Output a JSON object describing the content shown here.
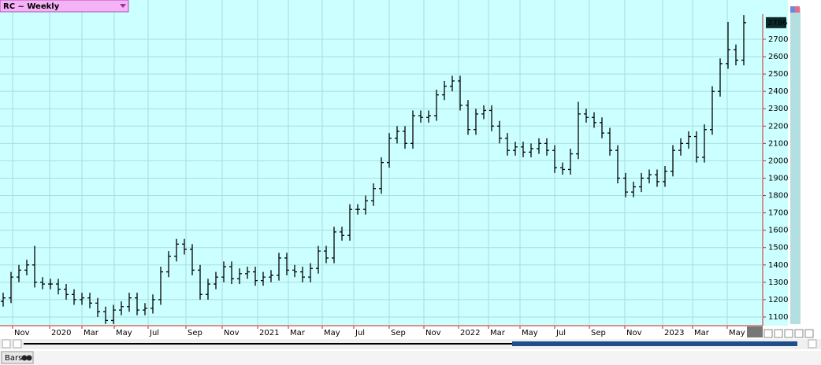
{
  "chart_data": {
    "type": "ohlc",
    "title": "RC ~ Weekly",
    "bottom_tab": "Bars",
    "last_price_label": true,
    "open": [
      1190,
      1210,
      1330,
      1370,
      1400,
      1300,
      1290,
      1290,
      1260,
      1230,
      1200,
      1210,
      1180,
      1130,
      1080,
      1140,
      1160,
      1210,
      1140,
      1150,
      1200,
      1360,
      1450,
      1520,
      1490,
      1370,
      1230,
      1290,
      1330,
      1390,
      1320,
      1350,
      1360,
      1310,
      1330,
      1340,
      1440,
      1370,
      1360,
      1330,
      1380,
      1480,
      1440,
      1590,
      1570,
      1720,
      1720,
      1770,
      1840,
      1990,
      2130,
      2170,
      2100,
      2260,
      2250,
      2260,
      2380,
      2430,
      2460,
      2320,
      2180,
      2270,
      2290,
      2200,
      2130,
      2060,
      2080,
      2050,
      2070,
      2100,
      2060,
      1960,
      1950,
      2040,
      2270,
      2250,
      2220,
      2160,
      2060,
      1900,
      1820,
      1850,
      1900,
      1920,
      1880,
      1940,
      2060,
      2100,
      2140,
      2020,
      2180,
      2400,
      2560,
      2640,
      2580
    ],
    "high": [
      1240,
      1360,
      1400,
      1430,
      1510,
      1330,
      1320,
      1320,
      1290,
      1260,
      1240,
      1240,
      1210,
      1160,
      1170,
      1190,
      1240,
      1240,
      1180,
      1230,
      1390,
      1480,
      1550,
      1550,
      1520,
      1400,
      1320,
      1360,
      1420,
      1420,
      1380,
      1390,
      1390,
      1360,
      1370,
      1470,
      1470,
      1400,
      1390,
      1410,
      1510,
      1510,
      1620,
      1620,
      1750,
      1750,
      1800,
      1870,
      2020,
      2160,
      2200,
      2200,
      2290,
      2290,
      2290,
      2410,
      2460,
      2490,
      2490,
      2350,
      2300,
      2320,
      2320,
      2230,
      2160,
      2110,
      2110,
      2100,
      2130,
      2130,
      2090,
      1990,
      2070,
      2340,
      2300,
      2280,
      2250,
      2190,
      2090,
      1930,
      1880,
      1930,
      1950,
      1950,
      1970,
      2090,
      2130,
      2170,
      2170,
      2210,
      2430,
      2590,
      2800,
      2670,
      2840
    ],
    "low": [
      1160,
      1180,
      1300,
      1340,
      1270,
      1260,
      1260,
      1230,
      1200,
      1170,
      1170,
      1150,
      1100,
      1060,
      1060,
      1110,
      1130,
      1110,
      1110,
      1120,
      1170,
      1330,
      1420,
      1460,
      1340,
      1200,
      1200,
      1260,
      1300,
      1290,
      1290,
      1320,
      1280,
      1280,
      1300,
      1310,
      1340,
      1330,
      1300,
      1300,
      1350,
      1410,
      1410,
      1540,
      1540,
      1690,
      1690,
      1740,
      1810,
      1960,
      2100,
      2070,
      2070,
      2220,
      2220,
      2230,
      2350,
      2400,
      2290,
      2150,
      2150,
      2240,
      2170,
      2100,
      2030,
      2030,
      2020,
      2020,
      2040,
      2030,
      1930,
      1920,
      1920,
      2010,
      2220,
      2190,
      2130,
      2030,
      1870,
      1790,
      1790,
      1820,
      1870,
      1850,
      1850,
      1910,
      2030,
      2070,
      1990,
      1990,
      2150,
      2370,
      2530,
      2550,
      2550
    ],
    "close": [
      1210,
      1330,
      1370,
      1400,
      1300,
      1290,
      1290,
      1260,
      1230,
      1200,
      1210,
      1180,
      1130,
      1080,
      1140,
      1160,
      1210,
      1140,
      1150,
      1200,
      1360,
      1450,
      1520,
      1490,
      1370,
      1230,
      1290,
      1330,
      1390,
      1320,
      1350,
      1360,
      1310,
      1330,
      1340,
      1440,
      1370,
      1360,
      1330,
      1380,
      1480,
      1440,
      1590,
      1570,
      1720,
      1720,
      1770,
      1840,
      1990,
      2130,
      2170,
      2100,
      2260,
      2250,
      2260,
      2380,
      2430,
      2460,
      2320,
      2180,
      2270,
      2290,
      2200,
      2130,
      2060,
      2080,
      2050,
      2070,
      2100,
      2060,
      1960,
      1950,
      2040,
      2270,
      2250,
      2220,
      2160,
      2060,
      1900,
      1820,
      1850,
      1900,
      1920,
      1880,
      1940,
      2060,
      2100,
      2140,
      2020,
      2180,
      2400,
      2560,
      2640,
      2580,
      2796
    ],
    "xlim": [
      -0.4,
      96.4
    ],
    "xticks": [
      {
        "value": 1.2,
        "label": "Nov"
      },
      {
        "value": 5.9,
        "label": "2020"
      },
      {
        "value": 10,
        "label": "Mar"
      },
      {
        "value": 14.1,
        "label": "May"
      },
      {
        "value": 18.4,
        "label": "Jul"
      },
      {
        "value": 23.2,
        "label": "Sep"
      },
      {
        "value": 27.8,
        "label": "Nov"
      },
      {
        "value": 32.3,
        "label": "2021"
      },
      {
        "value": 36.2,
        "label": "Mar"
      },
      {
        "value": 40.5,
        "label": "May"
      },
      {
        "value": 44.5,
        "label": "Jul"
      },
      {
        "value": 49,
        "label": "Sep"
      },
      {
        "value": 53.4,
        "label": "Nov"
      },
      {
        "value": 57.8,
        "label": "2022"
      },
      {
        "value": 61.6,
        "label": "Mar"
      },
      {
        "value": 65.6,
        "label": "May"
      },
      {
        "value": 70,
        "label": "Jul"
      },
      {
        "value": 74.4,
        "label": "Sep"
      },
      {
        "value": 78.9,
        "label": "Nov"
      },
      {
        "value": 83.7,
        "label": "2023"
      },
      {
        "value": 87.5,
        "label": "Mar"
      },
      {
        "value": 91.9,
        "label": "May"
      }
    ],
    "ylim": [
      1050,
      2845
    ],
    "yticks": [
      1100,
      1200,
      1300,
      1400,
      1500,
      1600,
      1700,
      1800,
      1900,
      2000,
      2100,
      2200,
      2300,
      2400,
      2500,
      2600,
      2700
    ],
    "grid": true,
    "bar_color": "#000000",
    "background": "#ccffff"
  }
}
